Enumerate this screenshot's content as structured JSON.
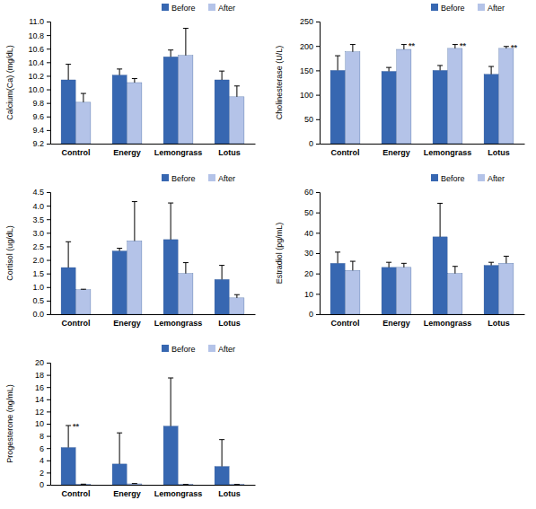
{
  "chart_data": [
    {
      "type": "bar",
      "y_label": "Calcium(Ca) (mg/dL)",
      "categories": [
        "Control",
        "Energy",
        "Lemongrass",
        "Lotus"
      ],
      "series": [
        {
          "name": "Before",
          "color": "#3767b1",
          "values": [
            10.14,
            10.21,
            10.48,
            10.14
          ],
          "errors": [
            0.23,
            0.09,
            0.1,
            0.13
          ]
        },
        {
          "name": "After",
          "color": "#b4c3e8",
          "values": [
            9.81,
            10.1,
            10.5,
            9.89
          ],
          "errors": [
            0.13,
            0.06,
            0.4,
            0.16
          ]
        }
      ],
      "ylim": [
        9.2,
        11.0
      ],
      "yticks": [
        9.2,
        9.4,
        9.6,
        9.8,
        {
          "value": 10.0,
          "label": "10.0"
        },
        10.2,
        10.4,
        10.6,
        10.8,
        {
          "value": 11.0,
          "label": "11.0"
        }
      ],
      "legend": "top-right",
      "annotations": []
    },
    {
      "type": "bar",
      "y_label": "Cholinesterase  (U/L)",
      "categories": [
        "Control",
        "Energy",
        "Lemongrass",
        "Lotus"
      ],
      "series": [
        {
          "name": "Before",
          "color": "#3767b1",
          "values": [
            150,
            148,
            150,
            142
          ],
          "errors": [
            30,
            8,
            10,
            16
          ]
        },
        {
          "name": "After",
          "color": "#b4c3e8",
          "values": [
            188,
            193,
            195,
            195
          ],
          "errors": [
            15,
            10,
            8,
            4
          ]
        }
      ],
      "ylim": [
        0,
        250
      ],
      "yticks": [
        0,
        50,
        100,
        150,
        200,
        250
      ],
      "legend": "top-right",
      "annotations": [
        {
          "text": "**",
          "series": 1,
          "category": 1
        },
        {
          "text": "**",
          "series": 1,
          "category": 2
        },
        {
          "text": "**",
          "series": 1,
          "category": 3
        }
      ]
    },
    {
      "type": "bar",
      "y_label": "Cortisol (ug/dL)",
      "categories": [
        "Control",
        "Energy",
        "Lemongrass",
        "Lotus"
      ],
      "series": [
        {
          "name": "Before",
          "color": "#3767b1",
          "values": [
            1.72,
            2.33,
            2.75,
            1.28
          ],
          "errors": [
            0.95,
            0.1,
            1.35,
            0.52
          ]
        },
        {
          "name": "After",
          "color": "#b4c3e8",
          "values": [
            0.9,
            2.7,
            1.5,
            0.6
          ],
          "errors": [
            0.02,
            1.45,
            0.4,
            0.12
          ]
        }
      ],
      "ylim": [
        0,
        4.5
      ],
      "yticks": [
        {
          "value": 0,
          "label": "0.0"
        },
        0.5,
        {
          "value": 1,
          "label": "1.0"
        },
        1.5,
        {
          "value": 2,
          "label": "2.0"
        },
        2.5,
        {
          "value": 3,
          "label": "3.0"
        },
        3.5,
        {
          "value": 4,
          "label": "4.0"
        },
        4.5
      ],
      "legend": "top-right",
      "annotations": []
    },
    {
      "type": "bar",
      "y_label": "Estradiol  (pg/mL)",
      "categories": [
        "Control",
        "Energy",
        "Lemongrass",
        "Lotus"
      ],
      "series": [
        {
          "name": "Before",
          "color": "#3767b1",
          "values": [
            25,
            23,
            38,
            24
          ],
          "errors": [
            5.5,
            2.5,
            16.5,
            1.5
          ]
        },
        {
          "name": "After",
          "color": "#b4c3e8",
          "values": [
            21.5,
            23,
            20,
            25
          ],
          "errors": [
            4.5,
            2,
            3.5,
            3.5
          ]
        }
      ],
      "ylim": [
        0,
        60
      ],
      "yticks": [
        0,
        10,
        20,
        30,
        40,
        50,
        60
      ],
      "legend": "top-right",
      "annotations": []
    },
    {
      "type": "bar",
      "y_label": "Progesterone  (ng/mL)",
      "categories": [
        "Control",
        "Energy",
        "Lemongrass",
        "Lotus"
      ],
      "series": [
        {
          "name": "Before",
          "color": "#3767b1",
          "values": [
            6.1,
            3.4,
            9.6,
            3.0
          ],
          "errors": [
            3.6,
            5.1,
            7.9,
            4.4
          ]
        },
        {
          "name": "After",
          "color": "#b4c3e8",
          "values": [
            0.1,
            0.15,
            0.05,
            0.05
          ],
          "errors": [
            0,
            0.05,
            0,
            0
          ]
        }
      ],
      "ylim": [
        0,
        20
      ],
      "yticks": [
        0,
        2,
        4,
        6,
        8,
        10,
        12,
        14,
        16,
        18,
        20
      ],
      "legend": "top-right",
      "annotations": [
        {
          "text": "**",
          "series": 0,
          "category": 0
        }
      ]
    }
  ]
}
